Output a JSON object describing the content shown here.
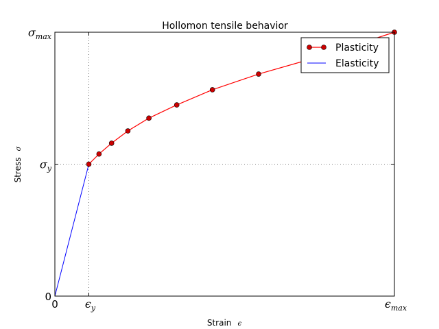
{
  "chart_data": {
    "type": "line",
    "title": "Hollomon tensile behavior",
    "xlabel": {
      "text": "Strain",
      "symbol": "ϵ"
    },
    "ylabel": {
      "text": "Stress",
      "symbol": "σ"
    },
    "x_ticks": [
      {
        "value": 0,
        "main": "0",
        "sub": ""
      },
      {
        "value": 1,
        "main": "ϵ",
        "sub": "y"
      },
      {
        "value": 10,
        "main": "ϵ",
        "sub": "max"
      }
    ],
    "y_ticks": [
      {
        "value": 0,
        "main": "0",
        "sub": ""
      },
      {
        "value": 1,
        "main": "σ",
        "sub": "y"
      },
      {
        "value": 2,
        "main": "σ",
        "sub": "max"
      }
    ],
    "xlim": [
      0,
      10
    ],
    "ylim": [
      0,
      2
    ],
    "grid": "dotted lines at yield and max",
    "legend_position": "top-right",
    "series": [
      {
        "name": "Plasticity",
        "color": "#ff0000",
        "marker": "circle",
        "x": [
          1.0,
          1.3,
          1.67,
          2.15,
          2.77,
          3.59,
          4.64,
          6.0,
          7.74,
          10.0
        ],
        "y": [
          1.0,
          1.077,
          1.159,
          1.252,
          1.349,
          1.449,
          1.564,
          1.683,
          1.811,
          2.0
        ]
      },
      {
        "name": "Elasticity",
        "color": "#0000ff",
        "marker": "none",
        "x": [
          0,
          1
        ],
        "y": [
          0,
          1
        ]
      }
    ]
  }
}
